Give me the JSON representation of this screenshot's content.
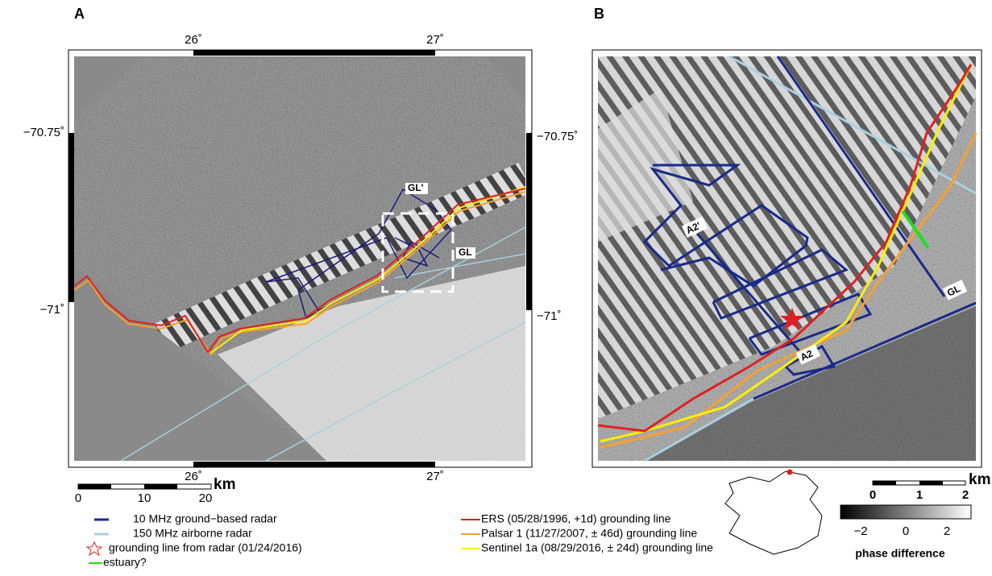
{
  "panel_a": {
    "label": "A",
    "lon_ticks_top": [
      "26˚",
      "27˚"
    ],
    "lon_ticks_bottom": [
      "26˚",
      "27˚"
    ],
    "lat_ticks_left": [
      "−70.75˚",
      "−71˚"
    ],
    "lat_ticks_right": [
      "−70.75˚",
      "−71˚"
    ],
    "map_labels": [
      "GL'",
      "GL"
    ],
    "scale_bar": {
      "ticks": [
        "0",
        "10",
        "20"
      ],
      "unit": "km"
    }
  },
  "panel_b": {
    "label": "B",
    "map_labels": [
      "A2'",
      "A2",
      "GL"
    ],
    "scale_bar": {
      "ticks": [
        "0",
        "1",
        "2"
      ],
      "unit": "km"
    },
    "colorbar": {
      "ticks": [
        "−2",
        "0",
        "2"
      ],
      "label": "phase difference"
    }
  },
  "legend": [
    "10 MHz ground−based radar",
    "150 MHz airborne radar",
    "grounding line from radar (01/24/2016)",
    "estuary?",
    "ERS (05/28/1996, +1d) grounding line",
    "Palsar 1 (11/27/2007, ± 46d) grounding line",
    "Sentinel 1a (08/29/2016, ± 24d) grounding line"
  ]
}
